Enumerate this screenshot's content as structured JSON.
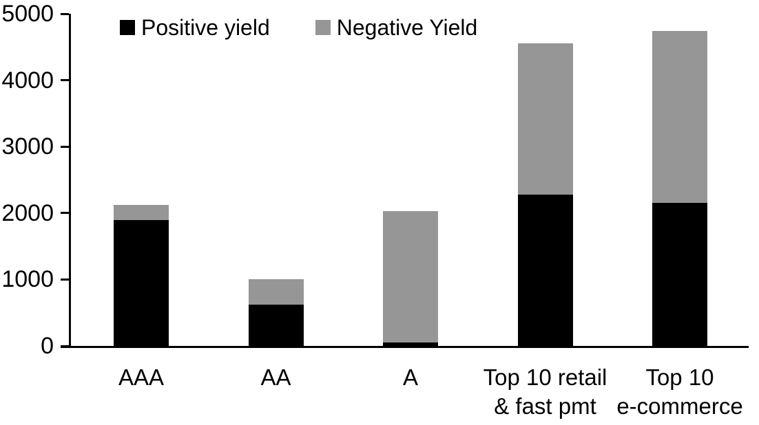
{
  "chart_data": {
    "type": "bar",
    "stacked": true,
    "title": "",
    "xlabel": "",
    "ylabel": "",
    "grid": "off",
    "legend_position": "top",
    "ylim": [
      0,
      5000
    ],
    "y_ticks": [
      0,
      1000,
      2000,
      3000,
      4000,
      5000
    ],
    "categories": [
      "AAA",
      "AA",
      "A",
      "Top 10 retail & fast pmt",
      "Top 10 e-commerce"
    ],
    "category_label_lines": [
      [
        "AAA"
      ],
      [
        "AA"
      ],
      [
        "A"
      ],
      [
        "Top 10 retail",
        "& fast pmt"
      ],
      [
        "Top 10",
        "e-commerce"
      ]
    ],
    "series": [
      {
        "name": "Positive yield",
        "color": "#000000",
        "values": [
          1890,
          620,
          50,
          2280,
          2150
        ]
      },
      {
        "name": "Negative Yield",
        "color": "#969696",
        "values": [
          230,
          380,
          1980,
          2270,
          2590
        ]
      }
    ]
  }
}
